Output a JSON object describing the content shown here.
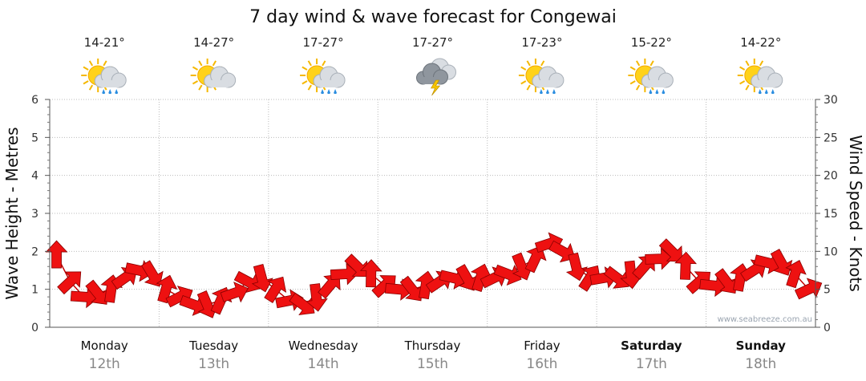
{
  "chart_data": {
    "type": "line",
    "title": "7 day wind & wave forecast for Congewai",
    "ylabel_left": "Wave Height - Metres",
    "ylabel_right": "Wind Speed - Knots",
    "ylim_left": [
      0,
      6
    ],
    "ylim_right": [
      0,
      30
    ],
    "yticks_left": [
      "0",
      "1",
      "2",
      "3",
      "4",
      "5",
      "6"
    ],
    "yticks_right": [
      "0",
      "5",
      "10",
      "15",
      "20",
      "25",
      "30"
    ],
    "grid": true,
    "days": [
      {
        "name": "Monday",
        "date": "12th",
        "temp": "14-21°",
        "icon": "sun-cloud-rain-icon",
        "weekend": false
      },
      {
        "name": "Tuesday",
        "date": "13th",
        "temp": "14-27°",
        "icon": "sun-cloud-icon",
        "weekend": false
      },
      {
        "name": "Wednesday",
        "date": "14th",
        "temp": "17-27°",
        "icon": "sun-cloud-rain-icon",
        "weekend": false
      },
      {
        "name": "Thursday",
        "date": "15th",
        "temp": "17-27°",
        "icon": "storm-cloud-icon",
        "weekend": false
      },
      {
        "name": "Friday",
        "date": "16th",
        "temp": "17-23°",
        "icon": "sun-cloud-rain-icon",
        "weekend": false
      },
      {
        "name": "Saturday",
        "date": "17th",
        "temp": "15-22°",
        "icon": "sun-cloud-rain-icon",
        "weekend": true
      },
      {
        "name": "Sunday",
        "date": "18th",
        "temp": "14-22°",
        "icon": "sun-cloud-rain-icon",
        "weekend": true
      }
    ],
    "series": [
      {
        "name": "Wind Speed (knots)",
        "axis": "right",
        "color": "#e81010",
        "points_per_day": 8,
        "values": [
          9.5,
          6,
          4,
          4.5,
          5,
          6.5,
          7.5,
          7,
          5,
          4,
          3,
          3,
          3.5,
          4.5,
          6,
          6.5,
          5,
          3.5,
          3,
          4,
          5.5,
          7,
          8,
          7,
          5.5,
          5,
          5,
          5.5,
          6,
          6.5,
          6.5,
          6.5,
          6.5,
          7,
          8,
          9,
          11,
          10,
          8,
          6.5,
          6.5,
          6.5,
          7,
          8,
          9,
          10,
          8,
          6,
          5.5,
          6,
          6.5,
          7.5,
          8.5,
          8.5,
          7,
          5
        ]
      }
    ],
    "wave_series": {
      "name": "Wave Height (m)",
      "axis": "left",
      "values": []
    },
    "credit": "www.seabreeze.com.au"
  }
}
